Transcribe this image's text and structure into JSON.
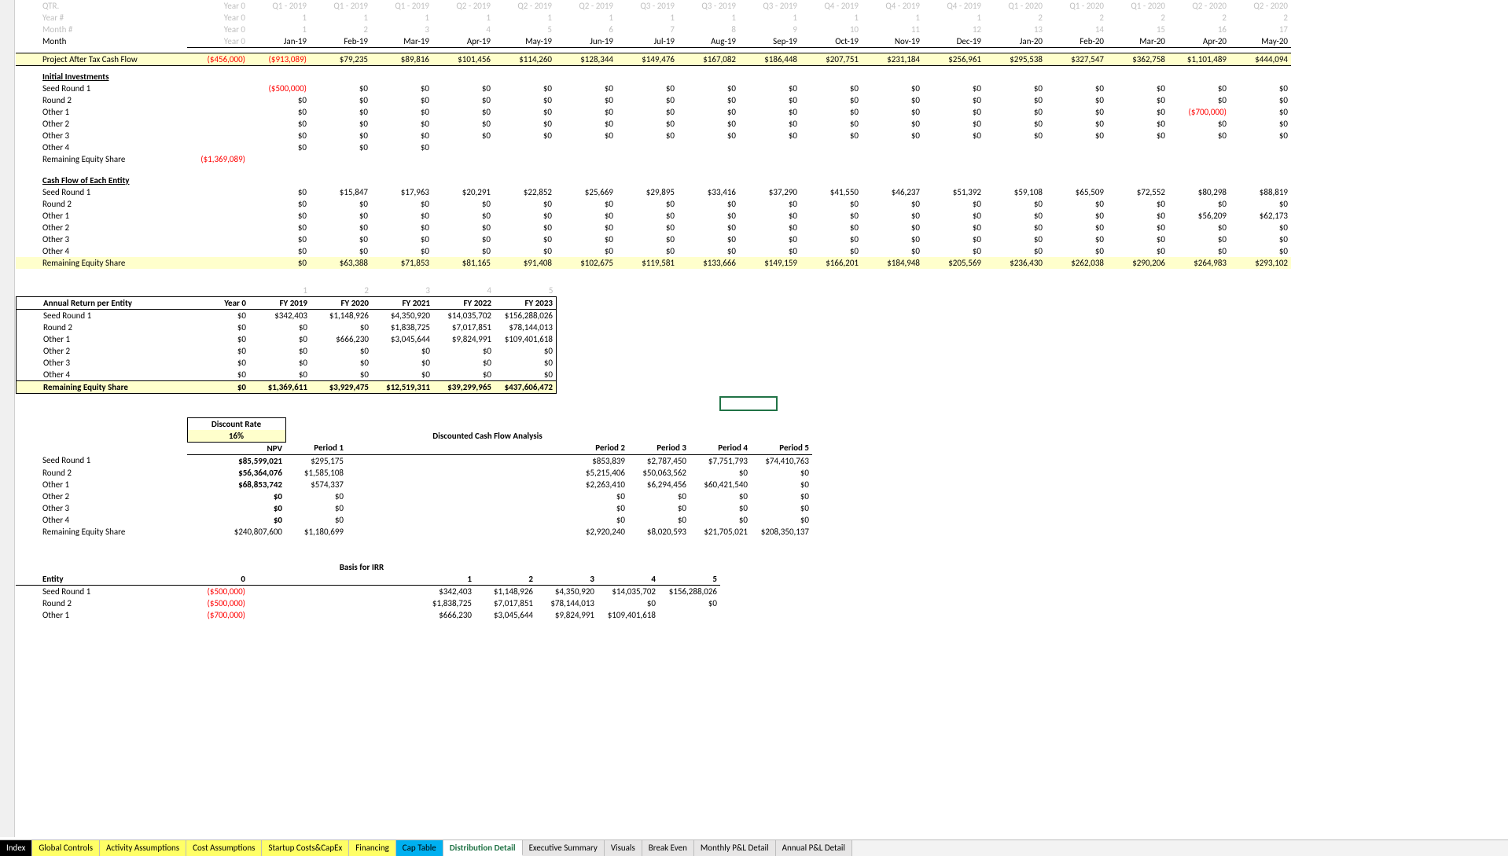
{
  "header": {
    "row_labels": [
      "QTR.",
      "Year #",
      "Month #",
      "Month"
    ],
    "year0_label": "Year 0",
    "qtr": [
      "Q1 - 2019",
      "Q1 - 2019",
      "Q1 - 2019",
      "Q2 - 2019",
      "Q2 - 2019",
      "Q2 - 2019",
      "Q3 - 2019",
      "Q3 - 2019",
      "Q3 - 2019",
      "Q4 - 2019",
      "Q4 - 2019",
      "Q4 - 2019",
      "Q1 - 2020",
      "Q1 - 2020",
      "Q1 - 2020",
      "Q2 - 2020",
      "Q2 - 2020"
    ],
    "yearn": [
      "1",
      "1",
      "1",
      "1",
      "1",
      "1",
      "1",
      "1",
      "1",
      "1",
      "1",
      "1",
      "2",
      "2",
      "2",
      "2",
      "2"
    ],
    "monthn": [
      "1",
      "2",
      "3",
      "4",
      "5",
      "6",
      "7",
      "8",
      "9",
      "10",
      "11",
      "12",
      "13",
      "14",
      "15",
      "16",
      "17"
    ],
    "month": [
      "Jan-19",
      "Feb-19",
      "Mar-19",
      "Apr-19",
      "May-19",
      "Jun-19",
      "Jul-19",
      "Aug-19",
      "Sep-19",
      "Oct-19",
      "Nov-19",
      "Dec-19",
      "Jan-20",
      "Feb-20",
      "Mar-20",
      "Apr-20",
      "May-20"
    ]
  },
  "patcf": {
    "label": "Project After Tax Cash Flow",
    "y0": "($456,000)",
    "vals": [
      "($913,089)",
      "$79,235",
      "$89,816",
      "$101,456",
      "$114,260",
      "$128,344",
      "$149,476",
      "$167,082",
      "$186,448",
      "$207,751",
      "$231,184",
      "$256,961",
      "$295,538",
      "$327,547",
      "$362,758",
      "$1,101,489",
      "$444,094"
    ]
  },
  "initial": {
    "title": "Initial Investments",
    "rows": [
      {
        "label": "Seed Round 1",
        "y0": "",
        "vals": [
          "($500,000)",
          "$0",
          "$0",
          "$0",
          "$0",
          "$0",
          "$0",
          "$0",
          "$0",
          "$0",
          "$0",
          "$0",
          "$0",
          "$0",
          "$0",
          "$0",
          "$0"
        ],
        "neg": [
          0
        ]
      },
      {
        "label": "Round 2",
        "y0": "",
        "vals": [
          "$0",
          "$0",
          "$0",
          "$0",
          "$0",
          "$0",
          "$0",
          "$0",
          "$0",
          "$0",
          "$0",
          "$0",
          "$0",
          "$0",
          "$0",
          "$0",
          "$0"
        ]
      },
      {
        "label": "Other 1",
        "y0": "",
        "vals": [
          "$0",
          "$0",
          "$0",
          "$0",
          "$0",
          "$0",
          "$0",
          "$0",
          "$0",
          "$0",
          "$0",
          "$0",
          "$0",
          "$0",
          "$0",
          "($700,000)",
          "$0"
        ],
        "neg": [
          15
        ]
      },
      {
        "label": "Other 2",
        "y0": "",
        "vals": [
          "$0",
          "$0",
          "$0",
          "$0",
          "$0",
          "$0",
          "$0",
          "$0",
          "$0",
          "$0",
          "$0",
          "$0",
          "$0",
          "$0",
          "$0",
          "$0",
          "$0"
        ]
      },
      {
        "label": "Other 3",
        "y0": "",
        "vals": [
          "$0",
          "$0",
          "$0",
          "$0",
          "$0",
          "$0",
          "$0",
          "$0",
          "$0",
          "$0",
          "$0",
          "$0",
          "$0",
          "$0",
          "$0",
          "$0",
          "$0"
        ]
      },
      {
        "label": "Other 4",
        "y0": "",
        "vals": [
          "$0",
          "$0",
          "$0",
          "",
          "",
          "",
          "",
          "",
          "",
          "",
          "",
          "",
          "",
          "",
          "",
          "",
          ""
        ]
      }
    ],
    "res": {
      "label": "Remaining Equity Share",
      "y0": "($1,369,089)"
    }
  },
  "cashflow": {
    "title": "Cash Flow of Each Entity",
    "rows": [
      {
        "label": "Seed Round 1",
        "vals": [
          "$0",
          "$15,847",
          "$17,963",
          "$20,291",
          "$22,852",
          "$25,669",
          "$29,895",
          "$33,416",
          "$37,290",
          "$41,550",
          "$46,237",
          "$51,392",
          "$59,108",
          "$65,509",
          "$72,552",
          "$80,298",
          "$88,819"
        ]
      },
      {
        "label": "Round 2",
        "vals": [
          "$0",
          "$0",
          "$0",
          "$0",
          "$0",
          "$0",
          "$0",
          "$0",
          "$0",
          "$0",
          "$0",
          "$0",
          "$0",
          "$0",
          "$0",
          "$0",
          "$0"
        ]
      },
      {
        "label": "Other 1",
        "vals": [
          "$0",
          "$0",
          "$0",
          "$0",
          "$0",
          "$0",
          "$0",
          "$0",
          "$0",
          "$0",
          "$0",
          "$0",
          "$0",
          "$0",
          "$0",
          "$56,209",
          "$62,173"
        ]
      },
      {
        "label": "Other 2",
        "vals": [
          "$0",
          "$0",
          "$0",
          "$0",
          "$0",
          "$0",
          "$0",
          "$0",
          "$0",
          "$0",
          "$0",
          "$0",
          "$0",
          "$0",
          "$0",
          "$0",
          "$0"
        ]
      },
      {
        "label": "Other 3",
        "vals": [
          "$0",
          "$0",
          "$0",
          "$0",
          "$0",
          "$0",
          "$0",
          "$0",
          "$0",
          "$0",
          "$0",
          "$0",
          "$0",
          "$0",
          "$0",
          "$0",
          "$0"
        ]
      },
      {
        "label": "Other 4",
        "vals": [
          "$0",
          "$0",
          "$0",
          "$0",
          "$0",
          "$0",
          "$0",
          "$0",
          "$0",
          "$0",
          "$0",
          "$0",
          "$0",
          "$0",
          "$0",
          "$0",
          "$0"
        ]
      }
    ],
    "res": {
      "label": "Remaining Equity Share",
      "vals": [
        "$0",
        "$63,388",
        "$71,853",
        "$81,165",
        "$91,408",
        "$102,675",
        "$119,581",
        "$133,666",
        "$149,159",
        "$166,201",
        "$184,948",
        "$205,569",
        "$236,430",
        "$262,038",
        "$290,206",
        "$264,983",
        "$293,102"
      ]
    }
  },
  "annual": {
    "title": "Annual Return per Entity",
    "period_nums": [
      "1",
      "2",
      "3",
      "4",
      "5"
    ],
    "headers": [
      "Year 0",
      "FY 2019",
      "FY 2020",
      "FY 2021",
      "FY 2022",
      "FY 2023"
    ],
    "rows": [
      {
        "label": "Seed Round 1",
        "vals": [
          "$0",
          "$342,403",
          "$1,148,926",
          "$4,350,920",
          "$14,035,702",
          "$156,288,026"
        ]
      },
      {
        "label": "Round 2",
        "vals": [
          "$0",
          "$0",
          "$0",
          "$1,838,725",
          "$7,017,851",
          "$78,144,013"
        ]
      },
      {
        "label": "Other 1",
        "vals": [
          "$0",
          "$0",
          "$666,230",
          "$3,045,644",
          "$9,824,991",
          "$109,401,618"
        ]
      },
      {
        "label": "Other 2",
        "vals": [
          "$0",
          "$0",
          "$0",
          "$0",
          "$0",
          "$0"
        ]
      },
      {
        "label": "Other 3",
        "vals": [
          "$0",
          "$0",
          "$0",
          "$0",
          "$0",
          "$0"
        ]
      },
      {
        "label": "Other 4",
        "vals": [
          "$0",
          "$0",
          "$0",
          "$0",
          "$0",
          "$0"
        ]
      }
    ],
    "res": {
      "label": "Remaining Equity Share",
      "vals": [
        "$0",
        "$1,369,611",
        "$3,929,475",
        "$12,519,311",
        "$39,299,965",
        "$437,606,472"
      ]
    }
  },
  "dcf": {
    "discount_label": "Discount Rate",
    "discount_value": "16%",
    "title": "Discounted Cash Flow Analysis",
    "headers": [
      "NPV",
      "Period 1",
      "Period 2",
      "Period 3",
      "Period 4",
      "Period 5"
    ],
    "rows": [
      {
        "label": "Seed Round 1",
        "vals": [
          "$85,599,021",
          "$295,175",
          "$853,839",
          "$2,787,450",
          "$7,751,793",
          "$74,410,763"
        ]
      },
      {
        "label": "Round 2",
        "vals": [
          "$56,364,076",
          "$1,585,108",
          "$5,215,406",
          "$50,063,562",
          "$0",
          "$0"
        ]
      },
      {
        "label": "Other 1",
        "vals": [
          "$68,853,742",
          "$574,337",
          "$2,263,410",
          "$6,294,456",
          "$60,421,540",
          "$0"
        ]
      },
      {
        "label": "Other 2",
        "vals": [
          "$0",
          "$0",
          "$0",
          "$0",
          "$0",
          "$0"
        ]
      },
      {
        "label": "Other 3",
        "vals": [
          "$0",
          "$0",
          "$0",
          "$0",
          "$0",
          "$0"
        ]
      },
      {
        "label": "Other 4",
        "vals": [
          "$0",
          "$0",
          "$0",
          "$0",
          "$0",
          "$0"
        ]
      },
      {
        "label": "Remaining Equity Share",
        "vals": [
          "$240,807,600",
          "$1,180,699",
          "$2,920,240",
          "$8,020,593",
          "$21,705,021",
          "$208,350,137"
        ]
      }
    ]
  },
  "irr": {
    "title": "Basis for IRR",
    "entity_label": "Entity",
    "headers": [
      "0",
      "1",
      "2",
      "3",
      "4",
      "5"
    ],
    "rows": [
      {
        "label": "Seed Round 1",
        "vals": [
          "($500,000)",
          "$342,403",
          "$1,148,926",
          "$4,350,920",
          "$14,035,702",
          "$156,288,026"
        ],
        "neg": [
          0
        ]
      },
      {
        "label": "Round 2",
        "vals": [
          "($500,000)",
          "$1,838,725",
          "$7,017,851",
          "$78,144,013",
          "$0",
          "$0"
        ],
        "neg": [
          0
        ]
      },
      {
        "label": "Other 1",
        "vals": [
          "($700,000)",
          "$666,230",
          "$3,045,644",
          "$9,824,991",
          "$109,401,618",
          ""
        ],
        "neg": [
          0
        ]
      }
    ]
  },
  "tabs": [
    {
      "label": "Index",
      "cls": "black"
    },
    {
      "label": "Global Controls",
      "cls": "yellow"
    },
    {
      "label": "Activity Assumptions",
      "cls": "yellow"
    },
    {
      "label": "Cost Assumptions",
      "cls": "yellow"
    },
    {
      "label": "Startup Costs&CapEx",
      "cls": "yellow"
    },
    {
      "label": "Financing",
      "cls": "yellow"
    },
    {
      "label": "Cap Table",
      "cls": "blue"
    },
    {
      "label": "Distribution Detail",
      "cls": "active"
    },
    {
      "label": "Executive Summary",
      "cls": "lgray"
    },
    {
      "label": "Visuals",
      "cls": "lgray"
    },
    {
      "label": "Break Even",
      "cls": "lgray"
    },
    {
      "label": "Monthly P&L Detail",
      "cls": "lgray"
    },
    {
      "label": "Annual P&L Detail",
      "cls": "lgray"
    }
  ]
}
